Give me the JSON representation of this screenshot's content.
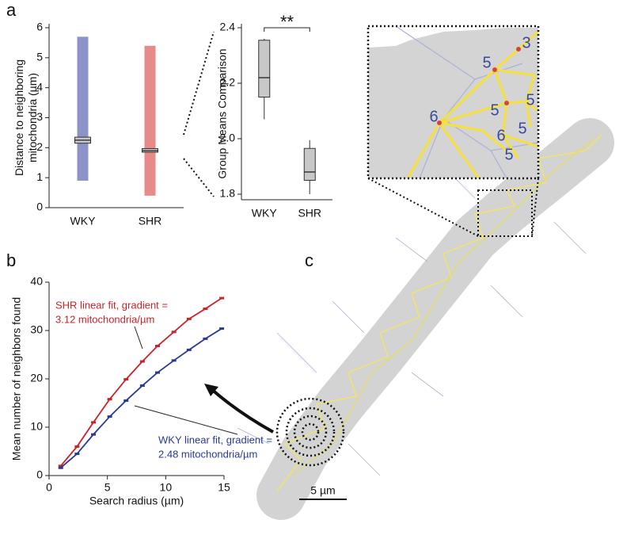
{
  "chart_data": [
    {
      "type": "box",
      "y_label": [
        "Distance to neighboring",
        "mitochondria (µm)"
      ],
      "categories": [
        "WKY",
        "SHR"
      ],
      "colors": [
        "#2b3a9a",
        "#d42a2a"
      ],
      "box_stats": [
        {
          "min": 0.9,
          "q1": 2.15,
          "median": 2.25,
          "q3": 2.35,
          "max": 5.7
        },
        {
          "min": 0.4,
          "q1": 1.85,
          "median": 1.9,
          "q3": 1.97,
          "max": 5.4
        }
      ],
      "ylim": [
        0,
        6
      ],
      "yticks": [
        0,
        1,
        2,
        3,
        4,
        5,
        6
      ]
    },
    {
      "type": "box",
      "y_label": [
        "Group Means Comparison"
      ],
      "annotation": "**",
      "categories": [
        "WKY",
        "SHR"
      ],
      "colors": [
        "#555555",
        "#555555"
      ],
      "box_stats": [
        {
          "min": 2.07,
          "q1": 2.15,
          "median": 2.22,
          "q3": 2.355,
          "max": 2.36
        },
        {
          "min": 1.8,
          "q1": 1.85,
          "median": 1.88,
          "q3": 1.965,
          "max": 1.995
        }
      ],
      "ylim": [
        1.78,
        2.4
      ],
      "yticks": [
        1.8,
        {
          "value": 2,
          "label": "2.0"
        },
        2.2,
        2.4
      ]
    },
    {
      "type": "line",
      "x_label": "Search radius (µm)",
      "y_label": [
        "Mean number of neighbors found"
      ],
      "x": [
        1,
        2.4,
        3.8,
        5.2,
        6.6,
        8,
        9.3,
        10.7,
        12,
        13.4,
        14.8
      ],
      "series": [
        {
          "name": "SHR",
          "color": "#c8242b",
          "values": [
            2,
            6,
            11,
            15.8,
            19.9,
            23.6,
            26.8,
            29.7,
            32.4,
            34.5,
            36.7
          ]
        },
        {
          "name": "WKY",
          "color": "#2b3a8f",
          "values": [
            1.6,
            4.5,
            8.5,
            12.2,
            15.5,
            18.6,
            21.3,
            23.8,
            26,
            28.3,
            30.4
          ]
        }
      ],
      "annotations": [
        [
          "SHR linear fit, gradient =",
          "3.12 mitochondria/µm"
        ],
        [
          "WKY linear fit, gradient =",
          "2.48 mitochondria/µm"
        ]
      ],
      "xlim": [
        0,
        15
      ],
      "xticks": [
        0,
        5,
        10,
        15
      ],
      "ylim": [
        0,
        40
      ],
      "yticks": [
        0,
        10,
        20,
        30,
        40
      ]
    }
  ],
  "panel_labels": [
    "a",
    "b",
    "c"
  ],
  "micrograph": {
    "scale_bar": "5 µm",
    "inset_labels": [
      "3",
      "5",
      "6",
      "5",
      "5",
      "6",
      "5",
      "5"
    ]
  }
}
